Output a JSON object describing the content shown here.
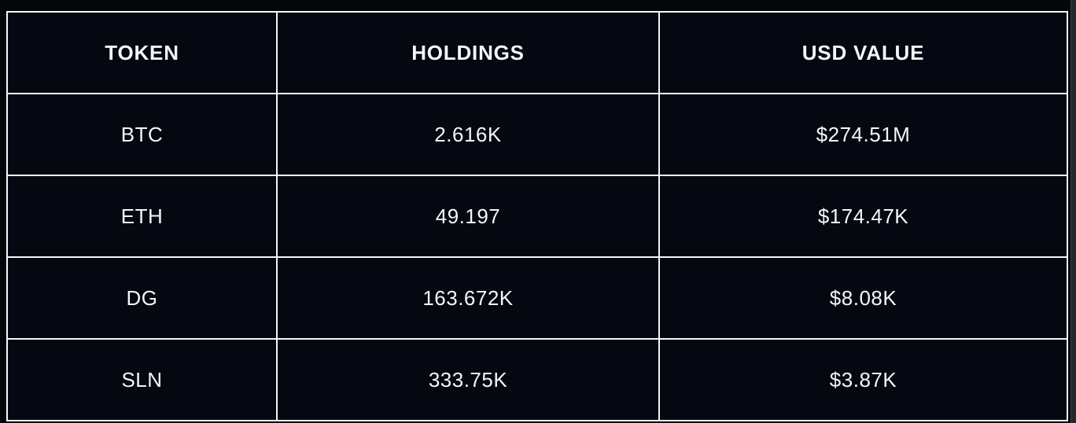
{
  "chart_data": {
    "type": "table",
    "columns": [
      "TOKEN",
      "HOLDINGS",
      "USD VALUE"
    ],
    "rows": [
      {
        "token": "BTC",
        "holdings": "2.616K",
        "usd_value": "$274.51M"
      },
      {
        "token": "ETH",
        "holdings": "49.197",
        "usd_value": "$174.47K"
      },
      {
        "token": "DG",
        "holdings": "163.672K",
        "usd_value": "$8.08K"
      },
      {
        "token": "SLN",
        "holdings": "333.75K",
        "usd_value": "$3.87K"
      }
    ]
  },
  "colors": {
    "page_background": "#04060b",
    "cell_background": "#050810",
    "table_border": "#f5f6f7",
    "text": "#f4f5f7",
    "scrollbar_track": "#26282e"
  }
}
